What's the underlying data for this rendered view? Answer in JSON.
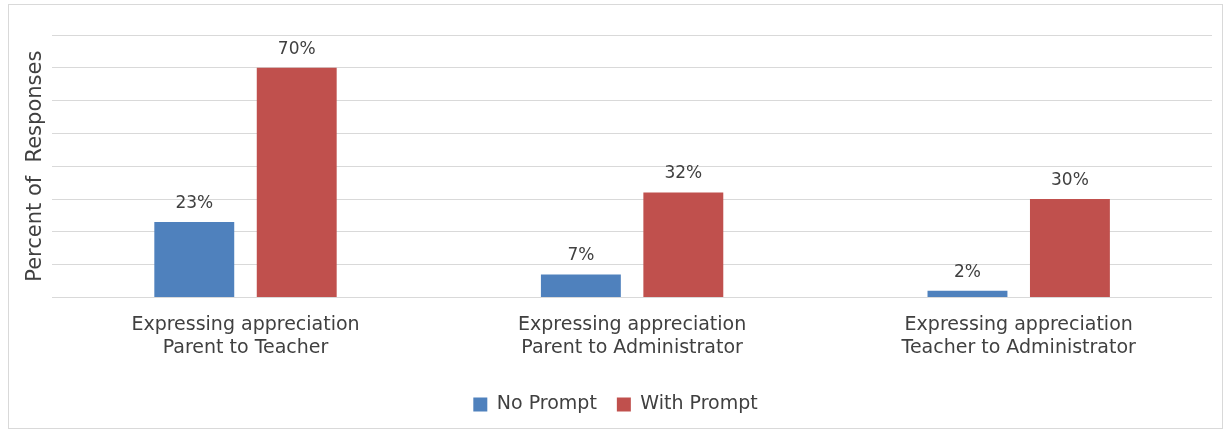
{
  "chart_data": {
    "type": "bar",
    "ylabel": "Percent of  Responses",
    "categories": [
      "Expressing appreciation\nParent to Teacher",
      "Expressing appreciation\nParent to Administrator",
      "Expressing appreciation\nTeacher to Administrator"
    ],
    "series": [
      {
        "name": "No Prompt",
        "color": "#4f81bd",
        "values": [
          23,
          7,
          2
        ],
        "value_labels": [
          "23%",
          "7%",
          "2%"
        ]
      },
      {
        "name": "With Prompt",
        "color": "#c0504d",
        "values": [
          70,
          32,
          30
        ],
        "value_labels": [
          "70%",
          "32%",
          "30%"
        ]
      }
    ],
    "ylim": [
      0,
      80
    ],
    "yticks": [
      {
        "value": 0,
        "label": null
      },
      {
        "value": 10,
        "label": null
      },
      {
        "value": 20,
        "label": null
      },
      {
        "value": 30,
        "label": null
      },
      {
        "value": 40,
        "label": null
      },
      {
        "value": 50,
        "label": null
      },
      {
        "value": 60,
        "label": null
      },
      {
        "value": 70,
        "label": null
      },
      {
        "value": 80,
        "label": null
      }
    ],
    "tick_labels": "x",
    "grid": "y",
    "legend": "bottom"
  }
}
